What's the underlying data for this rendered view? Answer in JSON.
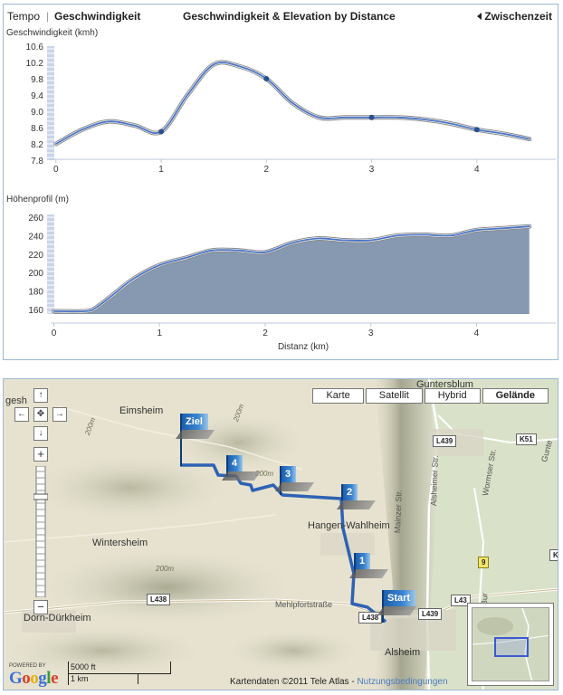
{
  "header": {
    "tempo_label": "Tempo",
    "separator": "|",
    "speed_label": "Geschwindigkeit",
    "title": "Geschwindigkeit & Elevation by Distance",
    "toggle_label": "Zwischenzeit"
  },
  "chart_data": [
    {
      "type": "line",
      "title": "",
      "ylabel": "Geschwindigkeit (kmh)",
      "xlabel": "",
      "xlim": [
        -0.05,
        4.75
      ],
      "ylim": [
        7.8,
        10.6
      ],
      "y_ticks": [
        "7.8",
        "8.2",
        "8.6",
        "9.0",
        "9.4",
        "9.8",
        "10.2",
        "10.6"
      ],
      "x_ticks": [
        "0",
        "1",
        "2",
        "3",
        "4"
      ],
      "series": [
        {
          "x": [
            0,
            0.25,
            0.5,
            0.75,
            1.0,
            1.25,
            1.5,
            1.75,
            2.0,
            2.25,
            2.5,
            2.75,
            3.0,
            3.25,
            3.5,
            3.75,
            4.0,
            4.25,
            4.5
          ],
          "values": [
            8.2,
            8.55,
            8.75,
            8.65,
            8.5,
            9.4,
            10.15,
            10.1,
            9.8,
            9.2,
            8.85,
            8.85,
            8.85,
            8.85,
            8.8,
            8.7,
            8.55,
            8.45,
            8.32
          ]
        }
      ],
      "km_markers": [
        {
          "x": 1.0,
          "y": 8.5
        },
        {
          "x": 2.0,
          "y": 9.8
        },
        {
          "x": 3.0,
          "y": 8.85
        },
        {
          "x": 4.0,
          "y": 8.55
        }
      ],
      "color": "#4a74c4"
    },
    {
      "type": "area",
      "title": "",
      "ylabel": "Höhenprofil (m)",
      "xlabel": "Distanz (km)",
      "xlim": [
        -0.03,
        4.75
      ],
      "ylim": [
        155,
        263
      ],
      "y_ticks": [
        "160",
        "180",
        "200",
        "220",
        "240",
        "260"
      ],
      "x_ticks": [
        "0",
        "1",
        "2",
        "3",
        "4"
      ],
      "series": [
        {
          "x": [
            0,
            0.3,
            0.4,
            0.55,
            0.75,
            1.0,
            1.25,
            1.5,
            1.75,
            2.0,
            2.25,
            2.5,
            2.75,
            3.0,
            3.25,
            3.5,
            3.75,
            4.0,
            4.25,
            4.5
          ],
          "values": [
            158,
            158,
            162,
            175,
            193,
            208,
            216,
            224,
            224,
            222,
            232,
            237,
            235,
            235,
            240,
            241,
            240,
            246,
            248,
            250
          ]
        }
      ],
      "color": "#4a74c4",
      "fill": "#7f93ad"
    }
  ],
  "map": {
    "type_buttons": [
      {
        "label": "Karte",
        "active": false
      },
      {
        "label": "Satellit",
        "active": false
      },
      {
        "label": "Hybrid",
        "active": false
      },
      {
        "label": "Gelände",
        "active": true
      }
    ],
    "places": {
      "guntersblum": "Guntersblum",
      "eimsheim": "Eimsheim",
      "gesheim": "gesh",
      "wintersheim": "Wintersheim",
      "hangen": "Hangen-Wahlheim",
      "durkheim": "Dorn-Dürkheim",
      "alsheim": "Alsheim"
    },
    "streets": {
      "mainzer": "Mainzer Str.",
      "alsheimer": "Alsheimer Str.",
      "wormser": "Wormser Str.",
      "mehlpfort": "Mehlpfortstraße",
      "bur": "Bur",
      "gunt": "Gunte"
    },
    "roads": {
      "l439_top": "L439",
      "l439_bottom": "L439",
      "k51": "K51",
      "nine": "9",
      "l438_left": "L438",
      "l438_mid": "L438",
      "l43_right": "L43",
      "k_right": "K"
    },
    "elevations": {
      "e200_top": "200m",
      "e200_mid": "200m",
      "e200_left": "200m",
      "e200_low": "200m"
    },
    "markers": {
      "ziel": "Ziel",
      "m4": "4",
      "m3": "3",
      "m2": "2",
      "m1": "1",
      "start": "Start"
    },
    "nav": {
      "up": "↑",
      "left": "←",
      "center": "✥",
      "right": "→",
      "down": "↓",
      "zoom_in": "+",
      "zoom_out": "−"
    },
    "footer": {
      "powered_by": "POWERED BY",
      "google": "Google",
      "scale_ft": "5000 ft",
      "scale_km": "1 km",
      "copyright": "Kartendaten ©2011 Tele Atlas - ",
      "terms": "Nutzungsbedingungen"
    }
  }
}
